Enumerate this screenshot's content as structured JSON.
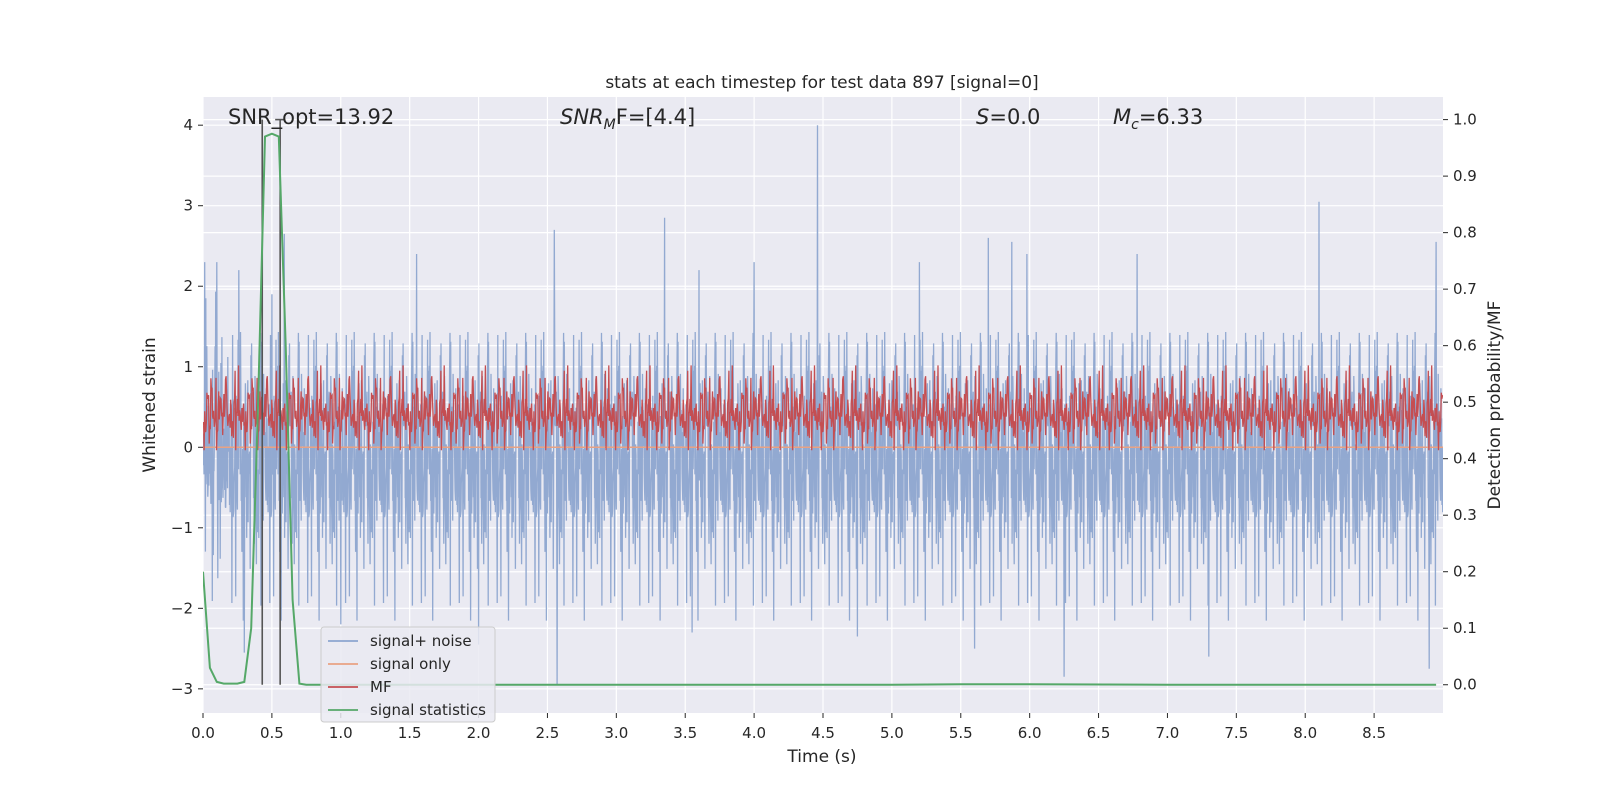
{
  "chart_data": {
    "type": "line",
    "title": "stats at each timestep for test data 897 [signal=0]",
    "xlabel": "Time (s)",
    "ylabel_left": "Whitened strain",
    "ylabel_right": "Detection probability/MF",
    "xlim": [
      0.0,
      9.0
    ],
    "ylim_left": [
      -3.3,
      4.35
    ],
    "ylim_right": [
      -0.05,
      1.04
    ],
    "x_ticks": [
      0.0,
      0.5,
      1.0,
      1.5,
      2.0,
      2.5,
      3.0,
      3.5,
      4.0,
      4.5,
      5.0,
      5.5,
      6.0,
      6.5,
      7.0,
      7.5,
      8.0,
      8.5
    ],
    "x_tick_labels": [
      "0.0",
      "0.5",
      "1.0",
      "1.5",
      "2.0",
      "2.5",
      "3.0",
      "3.5",
      "4.0",
      "4.5",
      "5.0",
      "5.5",
      "6.0",
      "6.5",
      "7.0",
      "7.5",
      "8.0",
      "8.5"
    ],
    "y_left_ticks": [
      -3,
      -2,
      -1,
      0,
      1,
      2,
      3,
      4
    ],
    "y_left_tick_labels": [
      "−3",
      "−2",
      "−1",
      "0",
      "1",
      "2",
      "3",
      "4"
    ],
    "y_right_ticks": [
      0.0,
      0.1,
      0.2,
      0.3,
      0.4,
      0.5,
      0.6,
      0.7,
      0.8,
      0.9,
      1.0
    ],
    "y_right_tick_labels": [
      "0.0",
      "0.1",
      "0.2",
      "0.3",
      "0.4",
      "0.5",
      "0.6",
      "0.7",
      "0.8",
      "0.9",
      "1.0"
    ],
    "grid": true,
    "legend_position": "lower-left",
    "annotations": {
      "snr_opt": "SNR_opt=13.92",
      "snr_mf_label": "SNR",
      "snr_mf_sub": "M",
      "snr_mf_rest": "F=[4.4]",
      "s_label": "S",
      "s_rest": "=0.0",
      "mc_label": "M",
      "mc_sub": "c",
      "mc_rest": "=6.33"
    },
    "vertical_markers": [
      0.43,
      0.56
    ],
    "series": [
      {
        "name": "signal+ noise",
        "color": "#8da5cf",
        "axis": "left",
        "description_range": [
          -3.0,
          4.0
        ],
        "spikes": [
          [
            0.02,
            1.85
          ],
          [
            0.1,
            2.3
          ],
          [
            0.26,
            2.2
          ],
          [
            0.5,
            1.9
          ],
          [
            0.59,
            2.65
          ],
          [
            1.55,
            2.4
          ],
          [
            2.55,
            2.7
          ],
          [
            3.35,
            2.85
          ],
          [
            3.6,
            2.2
          ],
          [
            4.46,
            4.0
          ],
          [
            4.0,
            2.3
          ],
          [
            5.2,
            2.3
          ],
          [
            5.7,
            2.6
          ],
          [
            5.87,
            2.55
          ],
          [
            5.98,
            2.4
          ],
          [
            6.78,
            2.4
          ],
          [
            8.1,
            3.05
          ],
          [
            8.95,
            2.55
          ],
          [
            0.3,
            -2.55
          ],
          [
            2.57,
            -2.95
          ],
          [
            6.25,
            -2.85
          ],
          [
            8.9,
            -2.75
          ],
          [
            4.75,
            -2.35
          ],
          [
            5.6,
            -2.5
          ],
          [
            7.3,
            -2.6
          ],
          [
            2.0,
            -2.45
          ],
          [
            3.55,
            -2.3
          ],
          [
            1.0,
            -2.2
          ]
        ]
      },
      {
        "name": "signal only",
        "color": "#e9a283",
        "axis": "left",
        "level": 0.0
      },
      {
        "name": "MF",
        "color": "#c44e52",
        "axis": "right",
        "range": [
          0.42,
          0.55
        ]
      },
      {
        "name": "signal statistics",
        "color": "#55a868",
        "axis": "right",
        "x": [
          0.0,
          0.05,
          0.1,
          0.15,
          0.2,
          0.25,
          0.3,
          0.35,
          0.4,
          0.45,
          0.5,
          0.55,
          0.6,
          0.65,
          0.7,
          0.75,
          0.8,
          1.0,
          2.0,
          3.0,
          4.0,
          5.0,
          5.5,
          6.0,
          7.0,
          8.0,
          8.95
        ],
        "y": [
          0.2,
          0.03,
          0.005,
          0.002,
          0.002,
          0.002,
          0.005,
          0.1,
          0.5,
          0.97,
          0.975,
          0.97,
          0.6,
          0.15,
          0.002,
          0.0,
          0.0,
          0.0,
          0.0,
          0.0,
          0.0,
          0.0,
          0.001,
          0.001,
          0.0,
          0.0,
          0.0
        ]
      }
    ]
  }
}
